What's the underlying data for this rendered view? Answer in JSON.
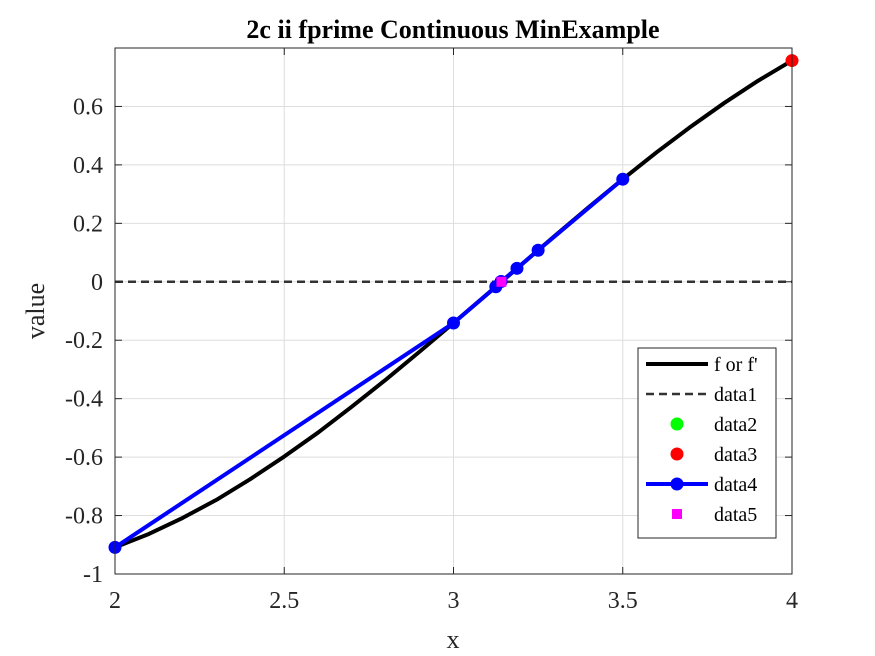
{
  "chart_data": {
    "type": "line",
    "title": "2c ii fprime Continuous MinExample",
    "xlabel": "x",
    "ylabel": "value",
    "xlim": [
      2,
      4
    ],
    "ylim": [
      -1,
      0.8
    ],
    "xticks": [
      2,
      2.5,
      3,
      3.5,
      4
    ],
    "xtick_labels": [
      "2",
      "2.5",
      "3",
      "3.5",
      "4"
    ],
    "yticks": [
      -1,
      -0.8,
      -0.6,
      -0.4,
      -0.2,
      0,
      0.2,
      0.4,
      0.6
    ],
    "ytick_labels": [
      "-1",
      "-0.8",
      "-0.6",
      "-0.4",
      "-0.2",
      "0",
      "0.2",
      "0.4",
      "0.6"
    ],
    "grid": true,
    "legend_position": "bottom-right",
    "series": [
      {
        "name": "f or f'",
        "style": "solid-thick",
        "color": "#000000",
        "x": [
          2.0,
          2.1,
          2.2,
          2.3,
          2.4,
          2.5,
          2.6,
          2.7,
          2.8,
          2.9,
          3.0,
          3.1,
          3.2,
          3.3,
          3.4,
          3.5,
          3.6,
          3.7,
          3.8,
          3.9,
          4.0
        ],
        "y": [
          -0.909,
          -0.863,
          -0.808,
          -0.746,
          -0.675,
          -0.598,
          -0.516,
          -0.427,
          -0.335,
          -0.239,
          -0.141,
          -0.042,
          0.058,
          0.158,
          0.256,
          0.351,
          0.443,
          0.53,
          0.612,
          0.688,
          0.757
        ]
      },
      {
        "name": "data1",
        "style": "dashed",
        "color": "#333333",
        "x": [
          2,
          4
        ],
        "y": [
          0,
          0
        ]
      },
      {
        "name": "data2",
        "style": "marker",
        "color": "#00ff00",
        "x": [],
        "y": []
      },
      {
        "name": "data3",
        "style": "marker",
        "color": "#ff0000",
        "x": [
          4.0
        ],
        "y": [
          0.757
        ]
      },
      {
        "name": "data4",
        "style": "line-marker",
        "color": "#0000ff",
        "x": [
          2.0,
          3.0,
          3.125,
          3.1406,
          3.1875,
          3.25,
          3.5
        ],
        "y": [
          -0.909,
          -0.141,
          -0.017,
          0.001,
          0.046,
          0.108,
          0.351
        ]
      },
      {
        "name": "data5",
        "style": "square-marker",
        "color": "#ff00ff",
        "x": [
          3.1416
        ],
        "y": [
          0.0
        ]
      }
    ]
  }
}
